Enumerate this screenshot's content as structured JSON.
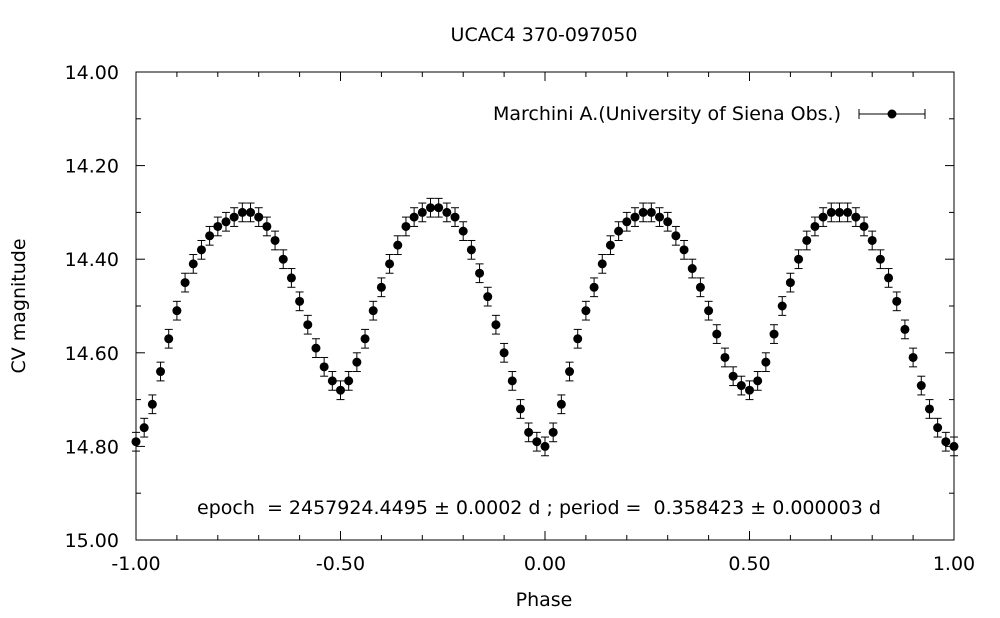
{
  "chart_data": {
    "type": "scatter",
    "title": "UCAC4 370-097050",
    "xlabel": "Phase",
    "ylabel": "CV magnitude",
    "xlim": [
      -1.0,
      1.0
    ],
    "ylim": [
      14.0,
      15.0
    ],
    "y_inverted": true,
    "grid": false,
    "legend_position": "top-right",
    "xticks": [
      -1.0,
      -0.5,
      0.0,
      0.5,
      1.0
    ],
    "xtick_labels": [
      "-1.00",
      "-0.50",
      "0.00",
      "0.50",
      "1.00"
    ],
    "yticks": [
      14.0,
      14.2,
      14.4,
      14.6,
      14.8,
      15.0
    ],
    "ytick_labels": [
      "14.00",
      "14.20",
      "14.40",
      "14.60",
      "14.80",
      "15.00"
    ],
    "annotation": "epoch  = 2457924.4495 ± 0.0002 d ; period =  0.358423 ± 0.000003 d",
    "marker_color": "#000000",
    "series": [
      {
        "name": "Marchini A.(University of Siena Obs.)",
        "error": 0.02,
        "x": [
          -1.0,
          -0.98,
          -0.96,
          -0.94,
          -0.92,
          -0.9,
          -0.88,
          -0.86,
          -0.84,
          -0.82,
          -0.8,
          -0.78,
          -0.76,
          -0.74,
          -0.72,
          -0.7,
          -0.68,
          -0.66,
          -0.64,
          -0.62,
          -0.6,
          -0.58,
          -0.56,
          -0.54,
          -0.52,
          -0.5,
          -0.48,
          -0.46,
          -0.44,
          -0.42,
          -0.4,
          -0.38,
          -0.36,
          -0.34,
          -0.32,
          -0.3,
          -0.28,
          -0.26,
          -0.24,
          -0.22,
          -0.2,
          -0.18,
          -0.16,
          -0.14,
          -0.12,
          -0.1,
          -0.08,
          -0.06,
          -0.04,
          -0.02,
          0.0,
          0.02,
          0.04,
          0.06,
          0.08,
          0.1,
          0.12,
          0.14,
          0.16,
          0.18,
          0.2,
          0.22,
          0.24,
          0.26,
          0.28,
          0.3,
          0.32,
          0.34,
          0.36,
          0.38,
          0.4,
          0.42,
          0.44,
          0.46,
          0.48,
          0.5,
          0.52,
          0.54,
          0.56,
          0.58,
          0.6,
          0.62,
          0.64,
          0.66,
          0.68,
          0.7,
          0.72,
          0.74,
          0.76,
          0.78,
          0.8,
          0.82,
          0.84,
          0.86,
          0.88,
          0.9,
          0.92,
          0.94,
          0.96,
          0.98,
          1.0
        ],
        "y": [
          14.79,
          14.76,
          14.71,
          14.64,
          14.57,
          14.51,
          14.45,
          14.41,
          14.38,
          14.35,
          14.33,
          14.32,
          14.31,
          14.3,
          14.3,
          14.31,
          14.33,
          14.36,
          14.4,
          14.44,
          14.49,
          14.54,
          14.59,
          14.63,
          14.66,
          14.68,
          14.66,
          14.62,
          14.57,
          14.51,
          14.46,
          14.41,
          14.37,
          14.33,
          14.31,
          14.3,
          14.29,
          14.29,
          14.3,
          14.31,
          14.34,
          14.38,
          14.43,
          14.48,
          14.54,
          14.6,
          14.66,
          14.72,
          14.77,
          14.79,
          14.8,
          14.77,
          14.71,
          14.64,
          14.57,
          14.51,
          14.46,
          14.41,
          14.37,
          14.34,
          14.32,
          14.31,
          14.3,
          14.3,
          14.31,
          14.32,
          14.35,
          14.38,
          14.42,
          14.46,
          14.51,
          14.56,
          14.61,
          14.65,
          14.67,
          14.68,
          14.66,
          14.62,
          14.56,
          14.5,
          14.45,
          14.4,
          14.36,
          14.33,
          14.31,
          14.3,
          14.3,
          14.3,
          14.31,
          14.33,
          14.36,
          14.4,
          14.44,
          14.49,
          14.55,
          14.61,
          14.67,
          14.72,
          14.76,
          14.79,
          14.8
        ]
      }
    ]
  }
}
